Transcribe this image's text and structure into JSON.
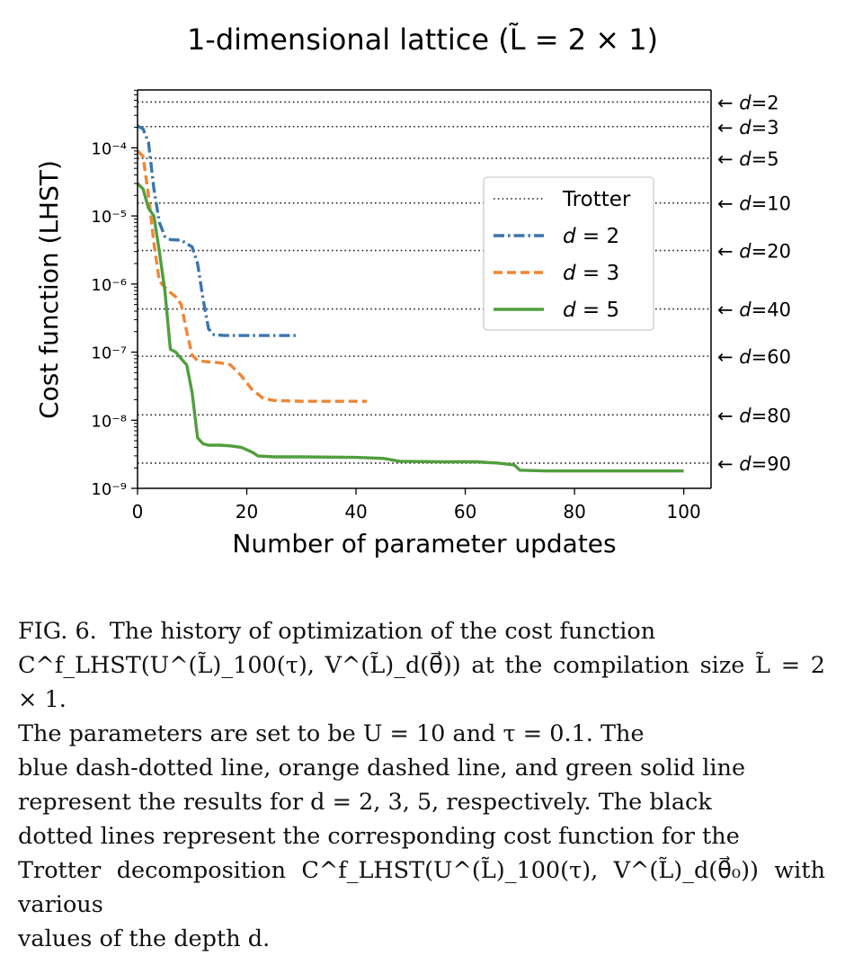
{
  "chart_data": {
    "type": "line",
    "title": "1-dimensional lattice (L̃ = 2 × 1)",
    "xlabel": "Number of parameter updates",
    "ylabel": "Cost function (LHST)",
    "xlim": [
      0,
      105
    ],
    "ylim_log10": [
      -9,
      -3.15
    ],
    "yscale": "log",
    "x_ticks": [
      0,
      20,
      40,
      60,
      80,
      100
    ],
    "y_ticks": [
      {
        "exp": -9,
        "label": "10⁻⁹"
      },
      {
        "exp": -8,
        "label": "10⁻⁸"
      },
      {
        "exp": -7,
        "label": "10⁻⁷"
      },
      {
        "exp": -6,
        "label": "10⁻⁶"
      },
      {
        "exp": -5,
        "label": "10⁻⁵"
      },
      {
        "exp": -4,
        "label": "10⁻⁴"
      }
    ],
    "legend_position": "upper-right",
    "series": [
      {
        "name": "d = 2",
        "style": "dashdot",
        "color": "#3b75af",
        "points": [
          [
            0,
            0.00021
          ],
          [
            1,
            0.00019
          ],
          [
            2,
            0.00012
          ],
          [
            3,
            2.5e-05
          ],
          [
            4,
            8e-06
          ],
          [
            5,
            5e-06
          ],
          [
            6,
            4.5e-06
          ],
          [
            8,
            4.4e-06
          ],
          [
            10,
            3.5e-06
          ],
          [
            11,
            2e-06
          ],
          [
            12,
            6e-07
          ],
          [
            13,
            2.2e-07
          ],
          [
            14,
            1.8e-07
          ],
          [
            16,
            1.75e-07
          ],
          [
            20,
            1.75e-07
          ],
          [
            25,
            1.75e-07
          ],
          [
            29,
            1.75e-07
          ]
        ]
      },
      {
        "name": "d = 3",
        "style": "dashed",
        "color": "#ef8636",
        "points": [
          [
            0,
            9e-05
          ],
          [
            1,
            7.5e-05
          ],
          [
            2,
            2e-05
          ],
          [
            3,
            4e-06
          ],
          [
            4,
            1.1e-06
          ],
          [
            5,
            9e-07
          ],
          [
            6,
            7.5e-07
          ],
          [
            7,
            6.5e-07
          ],
          [
            8,
            5e-07
          ],
          [
            9,
            2e-07
          ],
          [
            10,
            9e-08
          ],
          [
            11,
            7.5e-08
          ],
          [
            13,
            7.2e-08
          ],
          [
            15,
            7e-08
          ],
          [
            17,
            6.5e-08
          ],
          [
            19,
            4.5e-08
          ],
          [
            21,
            2.8e-08
          ],
          [
            23,
            2.1e-08
          ],
          [
            25,
            1.95e-08
          ],
          [
            30,
            1.9e-08
          ],
          [
            35,
            1.9e-08
          ],
          [
            42,
            1.9e-08
          ]
        ]
      },
      {
        "name": "d = 5",
        "style": "solid",
        "color": "#519e3e",
        "points": [
          [
            0,
            3e-05
          ],
          [
            1,
            2.5e-05
          ],
          [
            2,
            1.3e-05
          ],
          [
            3,
            1e-05
          ],
          [
            4,
            3e-06
          ],
          [
            5,
            8e-07
          ],
          [
            6,
            1.1e-07
          ],
          [
            7,
            1e-07
          ],
          [
            8,
            8e-08
          ],
          [
            9,
            6.5e-08
          ],
          [
            10,
            2.5e-08
          ],
          [
            11,
            5.5e-09
          ],
          [
            12,
            4.5e-09
          ],
          [
            13,
            4.3e-09
          ],
          [
            15,
            4.3e-09
          ],
          [
            17,
            4.2e-09
          ],
          [
            19,
            4e-09
          ],
          [
            21,
            3.4e-09
          ],
          [
            22,
            3e-09
          ],
          [
            25,
            2.9e-09
          ],
          [
            30,
            2.9e-09
          ],
          [
            40,
            2.85e-09
          ],
          [
            45,
            2.75e-09
          ],
          [
            48,
            2.5e-09
          ],
          [
            55,
            2.45e-09
          ],
          [
            62,
            2.45e-09
          ],
          [
            66,
            2.35e-09
          ],
          [
            69,
            2.2e-09
          ],
          [
            70,
            1.85e-09
          ],
          [
            75,
            1.8e-09
          ],
          [
            80,
            1.8e-09
          ],
          [
            90,
            1.8e-09
          ],
          [
            100,
            1.8e-09
          ]
        ]
      }
    ],
    "trotter": {
      "name": "Trotter",
      "style": "dotted",
      "color": "#222222",
      "levels": [
        {
          "d": "2",
          "value": 0.00047
        },
        {
          "d": "3",
          "value": 0.000205
        },
        {
          "d": "5",
          "value": 7e-05
        },
        {
          "d": "10",
          "value": 1.55e-05
        },
        {
          "d": "20",
          "value": 3.1e-06
        },
        {
          "d": "40",
          "value": 4.3e-07
        },
        {
          "d": "60",
          "value": 8.7e-08
        },
        {
          "d": "80",
          "value": 1.2e-08
        },
        {
          "d": "90",
          "value": 2.35e-09
        }
      ],
      "label_prefix": "← d="
    }
  },
  "caption": {
    "label": "FIG. 6.",
    "lines": [
      "The history of optimization of the cost function",
      "C^f_LHST(U^(L̃)_100(τ), V^(L̃)_d(θ⃗)) at the compilation size L̃ = 2 × 1.",
      "The parameters are set to be U = 10 and τ = 0.1. The",
      "blue dash-dotted line, orange dashed line, and green solid line",
      "represent the results for d = 2, 3, 5, respectively. The black",
      "dotted lines represent the corresponding cost function for the",
      "Trotter decomposition C^f_LHST(U^(L̃)_100(τ), V^(L̃)_d(θ⃗₀)) with various",
      "values of the depth d."
    ]
  }
}
